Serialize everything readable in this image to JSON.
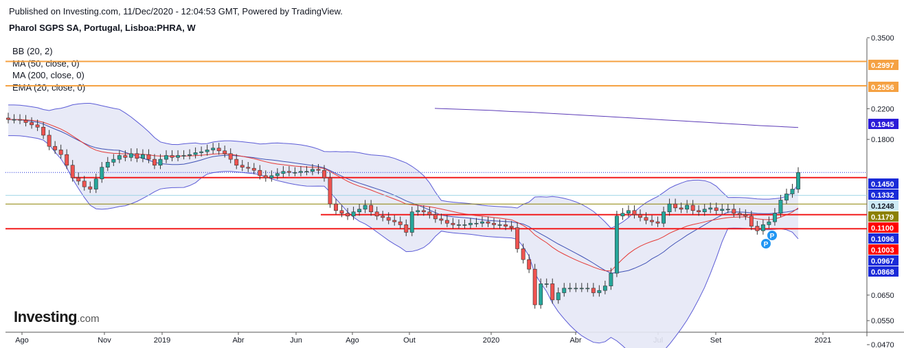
{
  "header": {
    "published": "Published on Investing.com, 11/Dec/2020 - 12:04:53 GMT, Powered by TradingView.",
    "instrument": "Pharol SGPS SA, Portugal, Lisboa:PHRA, W"
  },
  "legend": [
    "BB (20, 2)",
    "MA (50, close, 0)",
    "MA (200, close, 0)",
    "EMA (20, close, 0)"
  ],
  "logo": {
    "main": "Investing",
    "suffix": ".com"
  },
  "colors": {
    "up": "#26a69a",
    "down": "#ef5350",
    "bollinger": "#5b5bd6",
    "bollinger_fill": "#e6e8f6",
    "ma50": "#3f51b5",
    "ma200": "#5c3bb7",
    "ema20": "#e53935",
    "hline_orange": "#f5a142",
    "hline_red": "#f21b1b",
    "axis_blue": "#1a2bd8",
    "axis_red": "#ff0000",
    "axis_orange": "#f5a142"
  },
  "chart_data": {
    "type": "candlestick",
    "title": "Pharol SGPS SA, Portugal, Lisboa:PHRA, W",
    "x_labels": [
      "Ago",
      "Nov",
      "2019",
      "Abr",
      "Jun",
      "Ago",
      "Out",
      "2020",
      "Abr",
      "Jul",
      "Set",
      "2021"
    ],
    "y_ticks": [
      "0.3500",
      "0.2200",
      "0.1800",
      "0.0650",
      "0.0550",
      "0.0470"
    ],
    "y_scale": "log",
    "price_tags": [
      {
        "value": "0.2997",
        "style": "orange"
      },
      {
        "value": "0.2556",
        "style": "orange"
      },
      {
        "value": "0.1945",
        "style": "ma200"
      },
      {
        "value": "0.1450",
        "style": "blue"
      },
      {
        "value": "0.1332",
        "style": "blue"
      },
      {
        "value": "0.1248",
        "style": "light"
      },
      {
        "value": "0.1179",
        "style": "olive"
      },
      {
        "value": "0.1100",
        "style": "red"
      },
      {
        "value": "0.1096",
        "style": "blue"
      },
      {
        "value": "0.1003",
        "style": "red"
      },
      {
        "value": "0.0967",
        "style": "blue"
      },
      {
        "value": "0.0868",
        "style": "blue"
      }
    ],
    "horizontal_lines": [
      {
        "value": 0.2997,
        "style": "orange"
      },
      {
        "value": 0.2556,
        "style": "orange"
      },
      {
        "value": 0.1402,
        "style": "red",
        "from": "2018-10"
      },
      {
        "value": 0.1179,
        "style": "olive"
      },
      {
        "value": 0.11,
        "style": "red",
        "from": "2019-07"
      },
      {
        "value": 0.1003,
        "style": "red"
      }
    ],
    "candles_close": [
      0.205,
      0.205,
      0.204,
      0.201,
      0.198,
      0.195,
      0.185,
      0.172,
      0.168,
      0.163,
      0.152,
      0.14,
      0.137,
      0.132,
      0.13,
      0.139,
      0.15,
      0.155,
      0.158,
      0.162,
      0.16,
      0.164,
      0.159,
      0.163,
      0.158,
      0.152,
      0.158,
      0.162,
      0.16,
      0.162,
      0.162,
      0.163,
      0.165,
      0.166,
      0.168,
      0.17,
      0.167,
      0.164,
      0.158,
      0.152,
      0.15,
      0.149,
      0.147,
      0.142,
      0.14,
      0.142,
      0.144,
      0.146,
      0.145,
      0.145,
      0.146,
      0.146,
      0.148,
      0.147,
      0.14,
      0.118,
      0.113,
      0.111,
      0.109,
      0.112,
      0.114,
      0.117,
      0.112,
      0.109,
      0.108,
      0.106,
      0.105,
      0.103,
      0.098,
      0.112,
      0.113,
      0.112,
      0.11,
      0.107,
      0.106,
      0.104,
      0.103,
      0.103,
      0.103,
      0.104,
      0.104,
      0.105,
      0.104,
      0.103,
      0.103,
      0.102,
      0.101,
      0.088,
      0.082,
      0.077,
      0.061,
      0.07,
      0.07,
      0.063,
      0.066,
      0.068,
      0.068,
      0.068,
      0.068,
      0.068,
      0.066,
      0.067,
      0.069,
      0.075,
      0.109,
      0.111,
      0.113,
      0.11,
      0.108,
      0.106,
      0.105,
      0.104,
      0.112,
      0.118,
      0.115,
      0.114,
      0.117,
      0.113,
      0.112,
      0.114,
      0.115,
      0.113,
      0.114,
      0.114,
      0.111,
      0.11,
      0.109,
      0.102,
      0.099,
      0.103,
      0.105,
      0.111,
      0.121,
      0.126,
      0.13,
      0.145
    ],
    "series": [
      {
        "name": "MA (200, close, 0)",
        "values": [
          0.2205,
          0.2195,
          0.2185,
          0.2175,
          0.216,
          0.215,
          0.2135,
          0.212,
          0.2105,
          0.209,
          0.2075,
          0.206,
          0.2045,
          0.203,
          0.2015,
          0.2,
          0.1985,
          0.197,
          0.1958,
          0.1945
        ]
      }
    ]
  }
}
